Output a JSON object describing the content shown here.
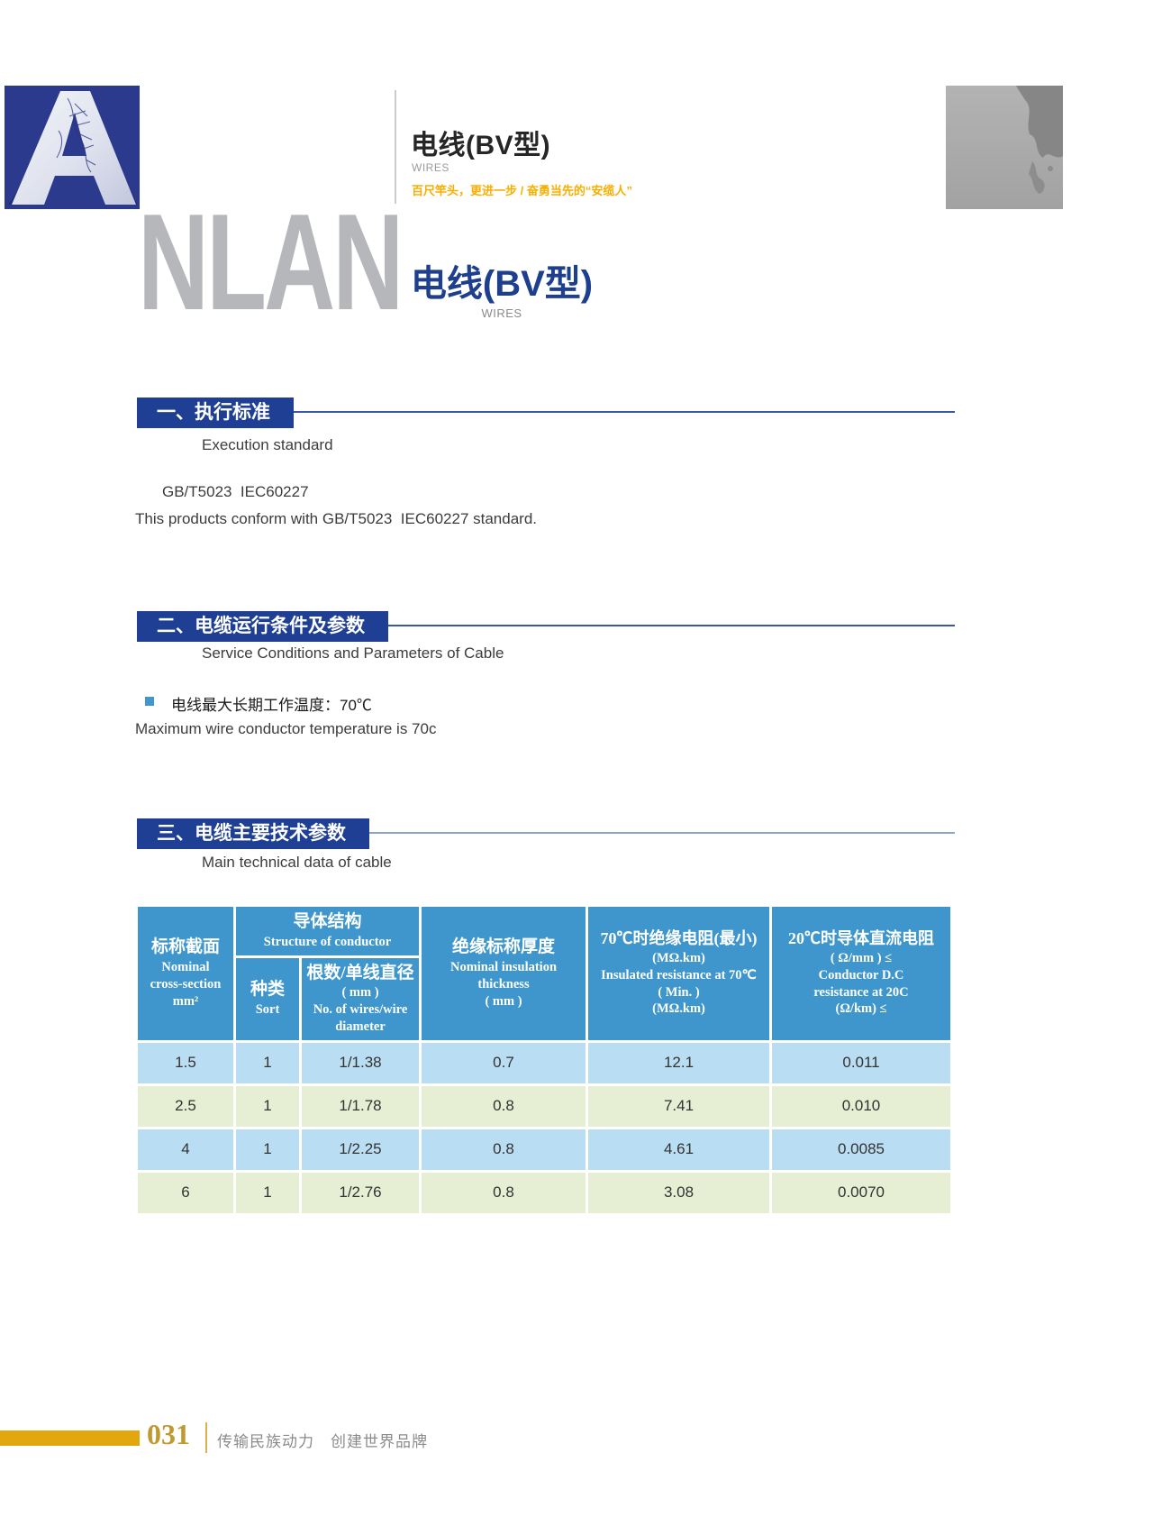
{
  "colors": {
    "brand_blue": "#2c3a8e",
    "brand_gray": "#b5b7ba",
    "accent_orange": "#f9ae00",
    "title_blue": "#1e3f8e",
    "section_blue": "#1e3f94",
    "table_header_blue": "#3e96cc",
    "row_light_blue": "#b9ddf3",
    "row_light_green": "#e6eed3",
    "footer_gold": "#e2a60f"
  },
  "header": {
    "logo_letter": "A",
    "brand_rest": "NLAN",
    "product_title": "电线(BV型)",
    "product_subtitle": "WIRES",
    "tagline": "百尺竿头，更进一步 / 奋勇当先的“安缆人”"
  },
  "title": {
    "main": "电线(BV型)",
    "sub": "WIRES"
  },
  "section1": {
    "heading": "一、执行标准",
    "subheading": "Execution standard",
    "line1": "GB/T5023  IEC60227",
    "line2": "This products conform with GB/T5023  IEC60227 standard."
  },
  "section2": {
    "heading": "二、电缆运行条件及参数",
    "subheading": "Service Conditions and Parameters of Cable",
    "bullet_zh": "电线最大长期工作温度：70℃",
    "bullet_en": "Maximum wire conductor temperature is 70c"
  },
  "section3": {
    "heading": "三、电缆主要技术参数",
    "subheading": "Main technical data of cable"
  },
  "table": {
    "headers": {
      "nominal": {
        "zh": "标称截面",
        "en1": "Nominal",
        "en2": "cross-section",
        "en3": "mm²"
      },
      "structure_group": {
        "zh": "导体结构",
        "en": "Structure of conductor"
      },
      "sort": {
        "zh": "种类",
        "en": "Sort"
      },
      "wires": {
        "zh": "根数/单线直径",
        "unit": "( mm )",
        "en1": "No. of wires/wire",
        "en2": "diameter"
      },
      "insulation": {
        "zh": "绝缘标称厚度",
        "en1": "Nominal insulation",
        "en2": "thickness",
        "unit": "( mm )"
      },
      "resistance70": {
        "zh": "70℃时绝缘电阻(最小)",
        "unit_top": "(MΩ.km)",
        "en1": "Insulated resistance at 70℃",
        "en2": "( Min. )",
        "unit_bottom": "(MΩ.km)"
      },
      "resistance20": {
        "zh": "20℃时导体直流电阻",
        "unit_top": "( Ω/mm ) ≤",
        "en1": "Conductor D.C",
        "en2": "resistance at 20C",
        "unit_bottom": "(Ω/km) ≤"
      }
    },
    "rows": [
      [
        "1.5",
        "1",
        "1/1.38",
        "0.7",
        "12.1",
        "0.011"
      ],
      [
        "2.5",
        "1",
        "1/1.78",
        "0.8",
        "7.41",
        "0.010"
      ],
      [
        "4",
        "1",
        "1/2.25",
        "0.8",
        "4.61",
        "0.0085"
      ],
      [
        "6",
        "1",
        "1/2.76",
        "0.8",
        "3.08",
        "0.0070"
      ]
    ]
  },
  "footer": {
    "page_number": "031",
    "slogan": "传输民族动力　创建世界品牌"
  }
}
